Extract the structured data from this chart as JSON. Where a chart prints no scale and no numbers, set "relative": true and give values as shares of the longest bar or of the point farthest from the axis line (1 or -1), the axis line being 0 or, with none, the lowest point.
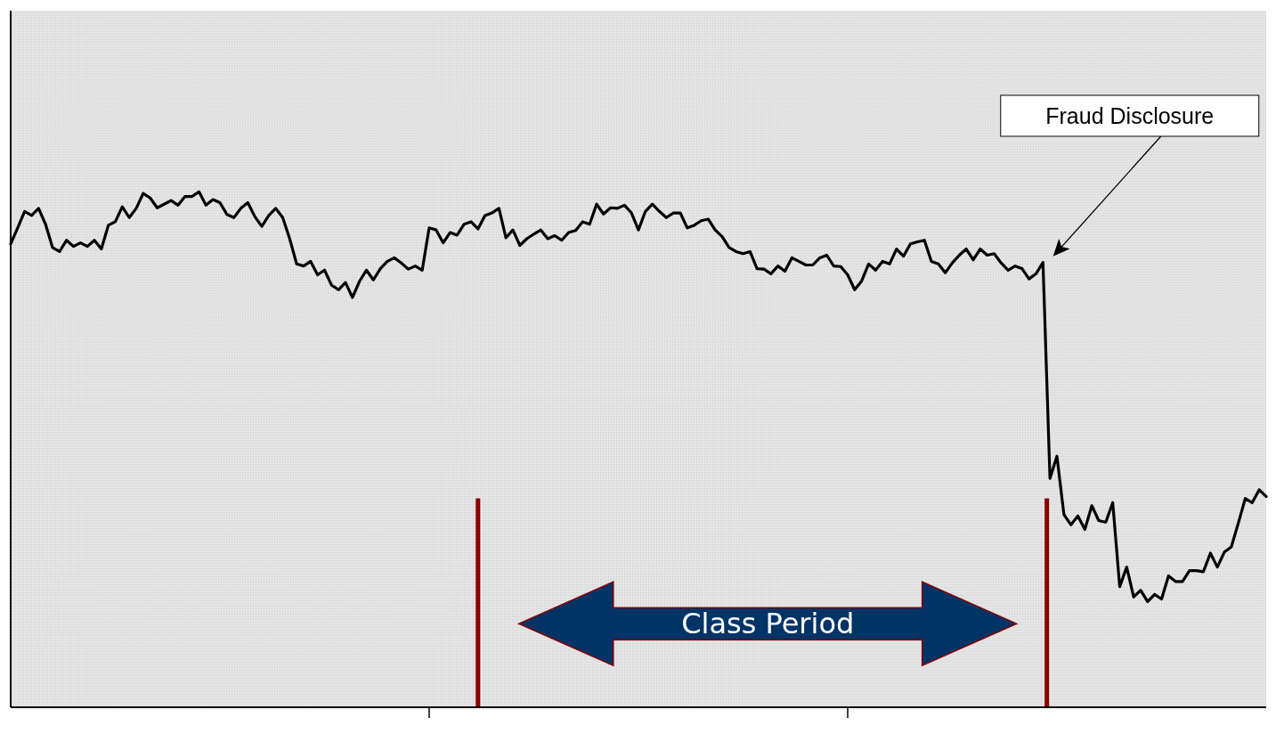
{
  "chart_data": {
    "type": "line",
    "relative": true,
    "marker": "none",
    "line_style": "solid",
    "categories": [
      null,
      null,
      null,
      null,
      null,
      null,
      null,
      null,
      null,
      null,
      null,
      null,
      null,
      null,
      null,
      null,
      null,
      null,
      null,
      null,
      null,
      null,
      null,
      null,
      null,
      null,
      null,
      null,
      null,
      null,
      null,
      null,
      null,
      null,
      null,
      null,
      null,
      null,
      null,
      null,
      null,
      null,
      null,
      null,
      null,
      null,
      null,
      null,
      null,
      null,
      null,
      null,
      null,
      null,
      null,
      null,
      null,
      null,
      null,
      null,
      null,
      null,
      null,
      null,
      null,
      null,
      null,
      null,
      null,
      null,
      null,
      null,
      null,
      null,
      null,
      null,
      null,
      null,
      null,
      null,
      null,
      null,
      null,
      null,
      null,
      null,
      null,
      null,
      null,
      null,
      null,
      null,
      null,
      null,
      null,
      null,
      null,
      null,
      null,
      null,
      null,
      null,
      null,
      null,
      null,
      null,
      null,
      null,
      null,
      null,
      null,
      null,
      null,
      null,
      null,
      null,
      null,
      null,
      null,
      null,
      null,
      null,
      null,
      null,
      null,
      null,
      null,
      null,
      null,
      null,
      null,
      null,
      null,
      null,
      null,
      null,
      null,
      null,
      null,
      null,
      null,
      null,
      null,
      null,
      null,
      null,
      null,
      null,
      null,
      null,
      null,
      null,
      null,
      null,
      null,
      null,
      null,
      null,
      null,
      null,
      null,
      null,
      null,
      null,
      null,
      null,
      null,
      null,
      null,
      null,
      null,
      null,
      null,
      null,
      null,
      null,
      null,
      null,
      null,
      null,
      null
    ],
    "series": [
      {
        "color": "#000000",
        "values": [
          0.899,
          0.93,
          0.962,
          0.954,
          0.968,
          0.937,
          0.892,
          0.884,
          0.906,
          0.894,
          0.901,
          0.894,
          0.906,
          0.889,
          0.935,
          0.942,
          0.971,
          0.95,
          0.968,
          0.997,
          0.988,
          0.969,
          0.976,
          0.983,
          0.974,
          0.991,
          0.991,
          1,
          0.974,
          0.985,
          0.979,
          0.956,
          0.95,
          0.968,
          0.979,
          0.952,
          0.933,
          0.954,
          0.968,
          0.95,
          0.909,
          0.86,
          0.856,
          0.865,
          0.839,
          0.848,
          0.819,
          0.81,
          0.824,
          0.795,
          0.826,
          0.848,
          0.829,
          0.851,
          0.865,
          0.872,
          0.862,
          0.85,
          0.856,
          0.848,
          0.93,
          0.926,
          0.901,
          0.921,
          0.916,
          0.937,
          0.942,
          0.928,
          0.954,
          0.959,
          0.968,
          0.911,
          0.926,
          0.896,
          0.909,
          0.918,
          0.926,
          0.909,
          0.915,
          0.906,
          0.921,
          0.925,
          0.942,
          0.937,
          0.976,
          0.957,
          0.969,
          0.968,
          0.974,
          0.959,
          0.926,
          0.962,
          0.976,
          0.962,
          0.95,
          0.959,
          0.959,
          0.93,
          0.935,
          0.944,
          0.947,
          0.926,
          0.913,
          0.892,
          0.884,
          0.88,
          0.884,
          0.851,
          0.85,
          0.841,
          0.856,
          0.846,
          0.872,
          0.865,
          0.858,
          0.858,
          0.872,
          0.877,
          0.856,
          0.855,
          0.839,
          0.81,
          0.827,
          0.86,
          0.848,
          0.865,
          0.86,
          0.889,
          0.875,
          0.899,
          0.903,
          0.906,
          0.865,
          0.86,
          0.843,
          0.862,
          0.877,
          0.889,
          0.868,
          0.889,
          0.877,
          0.88,
          0.862,
          0.848,
          0.856,
          0.851,
          0.831,
          0.841,
          0.863,
          0.444,
          0.487,
          0.374,
          0.354,
          0.371,
          0.345,
          0.391,
          0.362,
          0.359,
          0.397,
          0.234,
          0.272,
          0.214,
          0.227,
          0.205,
          0.219,
          0.21,
          0.255,
          0.244,
          0.244,
          0.265,
          0.265,
          0.263,
          0.299,
          0.272,
          0.301,
          0.311,
          0.357,
          0.405,
          0.397,
          0.422,
          0.409
        ]
      }
    ],
    "annotations": [
      "Fraud Disclosure",
      "Class Period"
    ]
  }
}
